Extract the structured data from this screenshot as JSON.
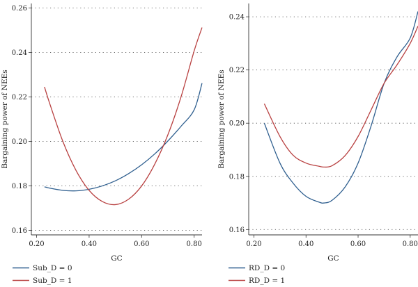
{
  "chart_data": [
    {
      "type": "line",
      "title": "",
      "xlabel": "GC",
      "ylabel": "Bargaining power of NEEs",
      "xlim": [
        0.18,
        0.83
      ],
      "ylim": [
        0.158,
        0.262
      ],
      "xticks": [
        0.2,
        0.4,
        0.6,
        0.8
      ],
      "xtick_labels": [
        "0.20",
        "0.40",
        "0.60",
        "0.80"
      ],
      "yticks": [
        0.16,
        0.18,
        0.2,
        0.22,
        0.24,
        0.26
      ],
      "ytick_labels": [
        "0.16",
        "0.18",
        "0.20",
        "0.22",
        "0.24",
        "0.26"
      ],
      "grid": "horizontal dotted",
      "legend_position": "bottom",
      "series": [
        {
          "name": "Sub_D = 0",
          "color": "#2f5f8f",
          "x": [
            0.23,
            0.25,
            0.3,
            0.35,
            0.4,
            0.45,
            0.5,
            0.55,
            0.6,
            0.65,
            0.7,
            0.75,
            0.8,
            0.83
          ],
          "y": [
            0.1796,
            0.179,
            0.178,
            0.1778,
            0.1785,
            0.18,
            0.1823,
            0.1855,
            0.1895,
            0.1944,
            0.2002,
            0.2068,
            0.2142,
            0.2262
          ]
        },
        {
          "name": "Sub_D = 1",
          "color": "#b84040",
          "x": [
            0.23,
            0.25,
            0.3,
            0.35,
            0.4,
            0.45,
            0.5,
            0.55,
            0.6,
            0.65,
            0.7,
            0.75,
            0.8,
            0.83
          ],
          "y": [
            0.2245,
            0.217,
            0.2,
            0.187,
            0.178,
            0.173,
            0.1716,
            0.174,
            0.18,
            0.1898,
            0.203,
            0.22,
            0.2407,
            0.2512
          ]
        }
      ]
    },
    {
      "type": "line",
      "title": "",
      "xlabel": "GC",
      "ylabel": "Bargaining power of NEEs",
      "xlim": [
        0.18,
        0.83
      ],
      "ylim": [
        0.158,
        0.245
      ],
      "xticks": [
        0.2,
        0.4,
        0.6,
        0.8
      ],
      "xtick_labels": [
        "0.20",
        "0.40",
        "0.60",
        "0.80"
      ],
      "yticks": [
        0.16,
        0.18,
        0.2,
        0.22,
        0.24
      ],
      "ytick_labels": [
        "0.16",
        "0.18",
        "0.20",
        "0.22",
        "0.24"
      ],
      "grid": "horizontal dotted",
      "legend_position": "bottom",
      "series": [
        {
          "name": "RD_D = 0",
          "color": "#2f5f8f",
          "x": [
            0.24,
            0.3,
            0.35,
            0.4,
            0.45,
            0.47,
            0.5,
            0.55,
            0.6,
            0.65,
            0.7,
            0.75,
            0.8,
            0.83
          ],
          "y": [
            0.2,
            0.185,
            0.1775,
            0.1725,
            0.1703,
            0.17,
            0.171,
            0.176,
            0.185,
            0.199,
            0.215,
            0.225,
            0.232,
            0.242
          ]
        },
        {
          "name": "RD_D = 1",
          "color": "#b84040",
          "x": [
            0.24,
            0.3,
            0.35,
            0.4,
            0.45,
            0.47,
            0.5,
            0.55,
            0.6,
            0.65,
            0.7,
            0.75,
            0.8,
            0.83
          ],
          "y": [
            0.2073,
            0.195,
            0.188,
            0.185,
            0.1838,
            0.1835,
            0.184,
            0.1878,
            0.195,
            0.205,
            0.215,
            0.222,
            0.23,
            0.2365
          ]
        }
      ]
    }
  ]
}
